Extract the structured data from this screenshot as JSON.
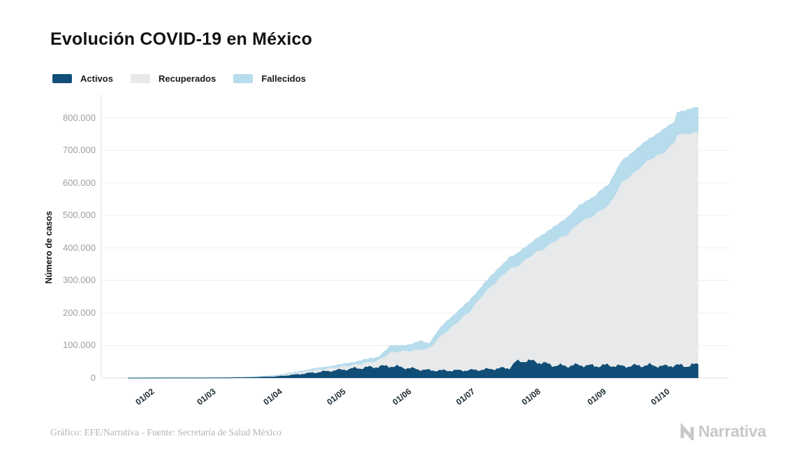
{
  "title": "Evolución COVID-19 en México",
  "legend": {
    "items": [
      {
        "label": "Activos",
        "color": "#114e77"
      },
      {
        "label": "Recuperados",
        "color": "#e8e9ea"
      },
      {
        "label": "Fallecidos",
        "color": "#b7dcec"
      }
    ]
  },
  "footer": {
    "source_text": "Gráfico: EFE/Narrativa - Fuente: Secretaría de Salud México",
    "brand": "Narrativa"
  },
  "colors": {
    "activos": "#114e77",
    "recuperados": "#e8e9ea",
    "fallecidos": "#b7dcec",
    "gridline": "#ededed",
    "axis": "#dcdcdc",
    "ytick_text": "#9aa0a4",
    "xtick_text": "#1c2b33"
  },
  "chart_data": {
    "type": "area",
    "stacked": true,
    "title": "Evolución COVID-19 en México",
    "xlabel": "",
    "ylabel": "Número de casos",
    "ylim": [
      0,
      870000
    ],
    "grid": "horizontal",
    "legend_position": "top-left",
    "y_ticks": [
      {
        "label": "0",
        "value": 0
      },
      {
        "label": "100.000",
        "value": 100000
      },
      {
        "label": "200.000",
        "value": 200000
      },
      {
        "label": "300.000",
        "value": 300000
      },
      {
        "label": "400.000",
        "value": 400000
      },
      {
        "label": "500.000",
        "value": 500000
      },
      {
        "label": "600.000",
        "value": 600000
      },
      {
        "label": "700.000",
        "value": 700000
      },
      {
        "label": "800.000",
        "value": 800000
      }
    ],
    "x_tick_labels": [
      "01/02",
      "01/03",
      "01/04",
      "01/05",
      "01/06",
      "01/07",
      "01/08",
      "01/09",
      "01/10"
    ],
    "series_names": [
      "Activos",
      "Recuperados",
      "Fallecidos"
    ],
    "points": [
      {
        "date": "22/01",
        "activos": 0,
        "recuperados": 0,
        "fallecidos": 0
      },
      {
        "date": "01/02",
        "activos": 100,
        "recuperados": 0,
        "fallecidos": 100
      },
      {
        "date": "20/02",
        "activos": 200,
        "recuperados": 100,
        "fallecidos": 200
      },
      {
        "date": "01/03",
        "activos": 300,
        "recuperados": 100,
        "fallecidos": 300
      },
      {
        "date": "10/03",
        "activos": 800,
        "recuperados": 400,
        "fallecidos": 400
      },
      {
        "date": "20/03",
        "activos": 1600,
        "recuperados": 800,
        "fallecidos": 600
      },
      {
        "date": "01/04",
        "activos": 4000,
        "recuperados": 2500,
        "fallecidos": 1500
      },
      {
        "date": "09/04",
        "activos": 9000,
        "recuperados": 5000,
        "fallecidos": 2500
      },
      {
        "date": "19/04",
        "activos": 16000,
        "recuperados": 8000,
        "fallecidos": 4500
      },
      {
        "date": "01/05",
        "activos": 24000,
        "recuperados": 10000,
        "fallecidos": 6500
      },
      {
        "date": "09/05",
        "activos": 29000,
        "recuperados": 13000,
        "fallecidos": 8500
      },
      {
        "date": "19/05",
        "activos": 34000,
        "recuperados": 19000,
        "fallecidos": 11500
      },
      {
        "date": "25/05",
        "activos": 36000,
        "recuperados": 43000,
        "fallecidos": 19000
      },
      {
        "date": "04/06",
        "activos": 28000,
        "recuperados": 56000,
        "fallecidos": 19000
      },
      {
        "date": "08/06",
        "activos": 25000,
        "recuperados": 63000,
        "fallecidos": 26000
      },
      {
        "date": "12/06",
        "activos": 23000,
        "recuperados": 67000,
        "fallecidos": 16000
      },
      {
        "date": "18/06",
        "activos": 22000,
        "recuperados": 109000,
        "fallecidos": 27000
      },
      {
        "date": "22/06",
        "activos": 22000,
        "recuperados": 130000,
        "fallecidos": 32000
      },
      {
        "date": "01/07",
        "activos": 23000,
        "recuperados": 180000,
        "fallecidos": 33000
      },
      {
        "date": "08/07",
        "activos": 25000,
        "recuperados": 235000,
        "fallecidos": 30000
      },
      {
        "date": "14/07",
        "activos": 28000,
        "recuperados": 270000,
        "fallecidos": 33000
      },
      {
        "date": "20/07",
        "activos": 30000,
        "recuperados": 305000,
        "fallecidos": 36000
      },
      {
        "date": "23/07",
        "activos": 48000,
        "recuperados": 292000,
        "fallecidos": 38000
      },
      {
        "date": "27/07",
        "activos": 52000,
        "recuperados": 308000,
        "fallecidos": 40000
      },
      {
        "date": "01/08",
        "activos": 50000,
        "recuperados": 335000,
        "fallecidos": 40000
      },
      {
        "date": "05/08",
        "activos": 44000,
        "recuperados": 352000,
        "fallecidos": 44000
      },
      {
        "date": "10/08",
        "activos": 38000,
        "recuperados": 382000,
        "fallecidos": 46000
      },
      {
        "date": "16/08",
        "activos": 36000,
        "recuperados": 404000,
        "fallecidos": 50000
      },
      {
        "date": "22/08",
        "activos": 39000,
        "recuperados": 439000,
        "fallecidos": 54000
      },
      {
        "date": "29/08",
        "activos": 36000,
        "recuperados": 464000,
        "fallecidos": 56000
      },
      {
        "date": "01/09",
        "activos": 37000,
        "recuperados": 479000,
        "fallecidos": 62000
      },
      {
        "date": "05/09",
        "activos": 38000,
        "recuperados": 494000,
        "fallecidos": 64000
      },
      {
        "date": "11/09",
        "activos": 35000,
        "recuperados": 565000,
        "fallecidos": 68000
      },
      {
        "date": "18/09",
        "activos": 37000,
        "recuperados": 601000,
        "fallecidos": 66000
      },
      {
        "date": "24/09",
        "activos": 38000,
        "recuperados": 634000,
        "fallecidos": 64000
      },
      {
        "date": "01/10",
        "activos": 35000,
        "recuperados": 659000,
        "fallecidos": 71000
      },
      {
        "date": "06/10",
        "activos": 38000,
        "recuperados": 688000,
        "fallecidos": 62000
      },
      {
        "date": "07/10",
        "activos": 38000,
        "recuperados": 710000,
        "fallecidos": 70000
      },
      {
        "date": "11/10",
        "activos": 36000,
        "recuperados": 714000,
        "fallecidos": 72000
      },
      {
        "date": "17/10",
        "activos": 41000,
        "recuperados": 714000,
        "fallecidos": 78000
      }
    ]
  }
}
